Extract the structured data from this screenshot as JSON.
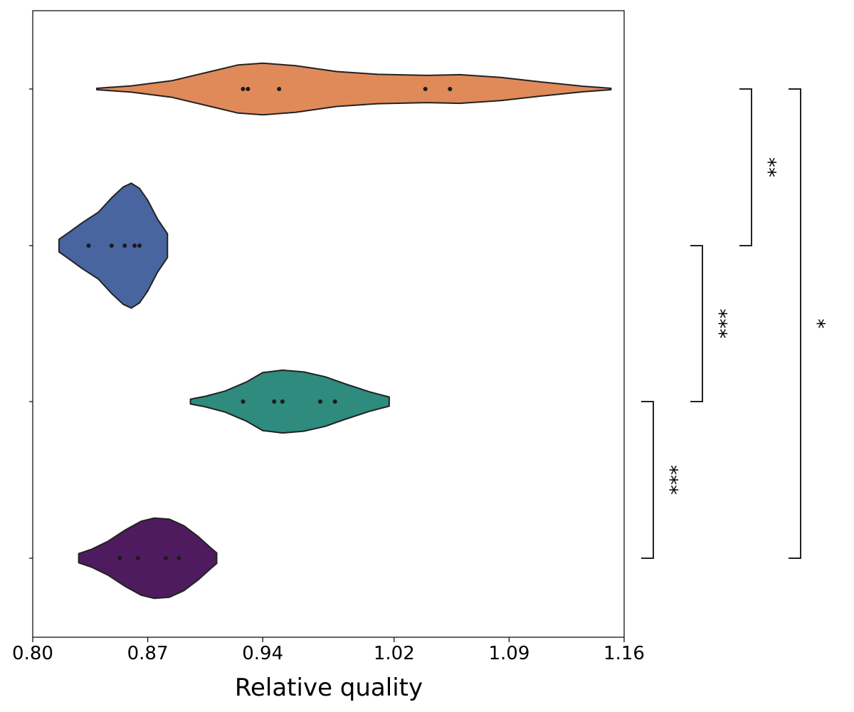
{
  "chart_data": {
    "type": "violin",
    "orientation": "horizontal",
    "title": "",
    "xlabel": "Relative quality",
    "ylabel": "",
    "xlim": [
      0.8,
      1.16
    ],
    "xticks": [
      {
        "value": 0.8,
        "label": "0.80"
      },
      {
        "value": 0.87,
        "label": "0.87"
      },
      {
        "value": 0.94,
        "label": "0.94"
      },
      {
        "value": 1.02,
        "label": "1.02"
      },
      {
        "value": 1.09,
        "label": "1.09"
      },
      {
        "value": 1.16,
        "label": "1.16"
      }
    ],
    "grid": false,
    "legend": "none",
    "violins": [
      {
        "color": "#E08A5A",
        "points": [
          0.928,
          0.931,
          0.95,
          1.039,
          1.054
        ],
        "profile": [
          [
            0.839,
            0.2
          ],
          [
            0.86,
            0.9
          ],
          [
            0.885,
            2.4
          ],
          [
            0.91,
            5.2
          ],
          [
            0.925,
            6.9
          ],
          [
            0.94,
            7.4
          ],
          [
            0.96,
            6.7
          ],
          [
            0.985,
            5.0
          ],
          [
            1.01,
            4.2
          ],
          [
            1.04,
            3.9
          ],
          [
            1.06,
            4.1
          ],
          [
            1.085,
            3.3
          ],
          [
            1.11,
            2.0
          ],
          [
            1.135,
            0.8
          ],
          [
            1.152,
            0.2
          ]
        ]
      },
      {
        "color": "#4865A0",
        "points": [
          0.834,
          0.848,
          0.856,
          0.862,
          0.865
        ],
        "profile": [
          [
            0.816,
            1.8
          ],
          [
            0.822,
            3.8
          ],
          [
            0.83,
            6.5
          ],
          [
            0.84,
            9.6
          ],
          [
            0.848,
            13.7
          ],
          [
            0.855,
            16.8
          ],
          [
            0.86,
            17.9
          ],
          [
            0.865,
            16.4
          ],
          [
            0.87,
            13.0
          ],
          [
            0.876,
            7.6
          ],
          [
            0.882,
            3.4
          ],
          [
            0.882,
            1.8
          ]
        ]
      },
      {
        "color": "#2E8B7D",
        "points": [
          0.928,
          0.947,
          0.952,
          0.975,
          0.984
        ],
        "profile": [
          [
            0.896,
            0.7
          ],
          [
            0.905,
            1.5
          ],
          [
            0.917,
            3.0
          ],
          [
            0.93,
            5.6
          ],
          [
            0.94,
            8.3
          ],
          [
            0.952,
            9.0
          ],
          [
            0.965,
            8.5
          ],
          [
            0.978,
            7.1
          ],
          [
            0.99,
            5.1
          ],
          [
            1.005,
            2.8
          ],
          [
            1.017,
            1.3
          ],
          [
            1.017,
            0.7
          ]
        ]
      },
      {
        "color": "#4E1C5E",
        "points": [
          0.853,
          0.864,
          0.881,
          0.889
        ],
        "profile": [
          [
            0.828,
            1.3
          ],
          [
            0.836,
            2.6
          ],
          [
            0.846,
            4.9
          ],
          [
            0.856,
            8.0
          ],
          [
            0.866,
            10.6
          ],
          [
            0.874,
            11.5
          ],
          [
            0.883,
            11.2
          ],
          [
            0.892,
            9.3
          ],
          [
            0.901,
            6.1
          ],
          [
            0.908,
            3.1
          ],
          [
            0.912,
            1.5
          ],
          [
            0.912,
            1.3
          ]
        ]
      }
    ],
    "significance": [
      {
        "from": 0,
        "to": 1,
        "label": "**"
      },
      {
        "from": 1,
        "to": 2,
        "label": "***"
      },
      {
        "from": 2,
        "to": 3,
        "label": "***"
      },
      {
        "from": 0,
        "to": 3,
        "label": "*"
      }
    ]
  }
}
